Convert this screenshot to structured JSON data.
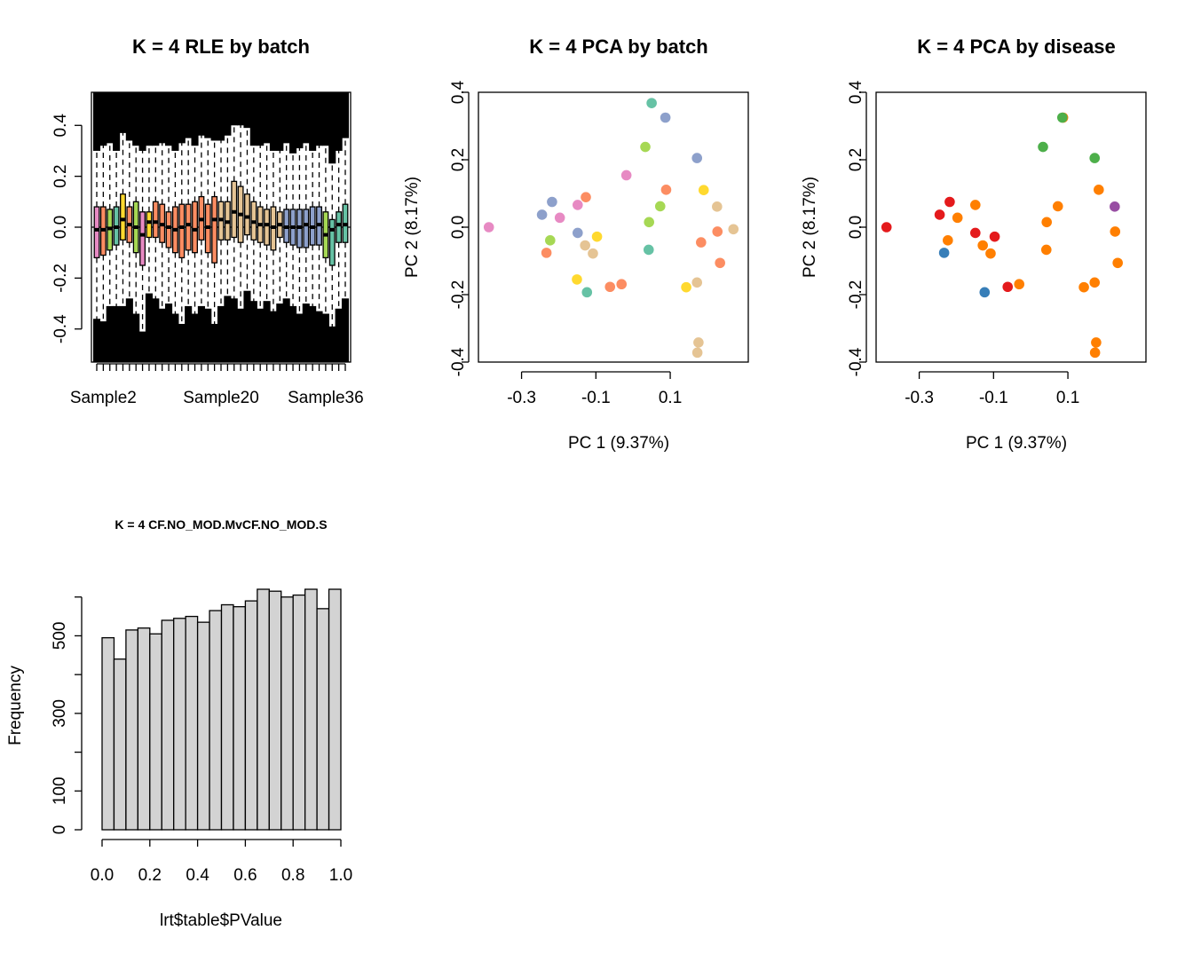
{
  "figure": {
    "layout": "2x3 grid of base R plots"
  },
  "chart_data": [
    {
      "type": "boxplot",
      "id": "rle",
      "title": "K = 4 RLE by batch",
      "xlabel": "",
      "ylabel": "",
      "ylim": [
        -0.53,
        0.53
      ],
      "yticks": [
        -0.4,
        -0.2,
        0.0,
        0.2,
        0.4
      ],
      "ytick_labels": [
        "-0.4",
        "-0.2",
        "0.0",
        "0.2",
        "0.4"
      ],
      "xtick_labels": [
        "Sample2",
        "Sample20",
        "Sample36"
      ],
      "xtick_label_positions": [
        2,
        20,
        36
      ],
      "n_samples": 39,
      "reference_line": 0,
      "boxes": [
        {
          "q1": -0.12,
          "median": -0.01,
          "q3": 0.08,
          "color": "#E78AC3"
        },
        {
          "q1": -0.11,
          "median": -0.01,
          "q3": 0.08,
          "color": "#FC8D62"
        },
        {
          "q1": -0.09,
          "median": -0.005,
          "q3": 0.07,
          "color": "#A6D854"
        },
        {
          "q1": -0.07,
          "median": 0.0,
          "q3": 0.08,
          "color": "#66C2A5"
        },
        {
          "q1": -0.05,
          "median": 0.03,
          "q3": 0.13,
          "color": "#FFD92F"
        },
        {
          "q1": -0.06,
          "median": 0.01,
          "q3": 0.08,
          "color": "#FC8D62"
        },
        {
          "q1": -0.1,
          "median": 0.0,
          "q3": 0.1,
          "color": "#A6D854"
        },
        {
          "q1": -0.15,
          "median": -0.03,
          "q3": 0.06,
          "color": "#E78AC3"
        },
        {
          "q1": -0.04,
          "median": 0.02,
          "q3": 0.06,
          "color": "#FFD92F"
        },
        {
          "q1": -0.04,
          "median": 0.02,
          "q3": 0.1,
          "color": "#FC8D62"
        },
        {
          "q1": -0.06,
          "median": 0.01,
          "q3": 0.09,
          "color": "#FC8D62"
        },
        {
          "q1": -0.08,
          "median": 0.0,
          "q3": 0.06,
          "color": "#FC8D62"
        },
        {
          "q1": -0.1,
          "median": -0.01,
          "q3": 0.08,
          "color": "#FC8D62"
        },
        {
          "q1": -0.12,
          "median": 0.0,
          "q3": 0.09,
          "color": "#FC8D62"
        },
        {
          "q1": -0.09,
          "median": 0.01,
          "q3": 0.09,
          "color": "#FC8D62"
        },
        {
          "q1": -0.1,
          "median": -0.01,
          "q3": 0.1,
          "color": "#FC8D62"
        },
        {
          "q1": -0.05,
          "median": 0.03,
          "q3": 0.12,
          "color": "#FC8D62"
        },
        {
          "q1": -0.1,
          "median": 0.0,
          "q3": 0.09,
          "color": "#FC8D62"
        },
        {
          "q1": -0.14,
          "median": 0.03,
          "q3": 0.12,
          "color": "#FC8D62"
        },
        {
          "q1": -0.05,
          "median": 0.03,
          "q3": 0.1,
          "color": "#E5C494"
        },
        {
          "q1": -0.05,
          "median": 0.02,
          "q3": 0.1,
          "color": "#E5C494"
        },
        {
          "q1": -0.04,
          "median": 0.06,
          "q3": 0.18,
          "color": "#E5C494"
        },
        {
          "q1": -0.06,
          "median": 0.05,
          "q3": 0.16,
          "color": "#E5C494"
        },
        {
          "q1": -0.03,
          "median": 0.04,
          "q3": 0.13,
          "color": "#E5C494"
        },
        {
          "q1": -0.05,
          "median": 0.02,
          "q3": 0.1,
          "color": "#E5C494"
        },
        {
          "q1": -0.06,
          "median": 0.01,
          "q3": 0.08,
          "color": "#E5C494"
        },
        {
          "q1": -0.07,
          "median": 0.01,
          "q3": 0.07,
          "color": "#E5C494"
        },
        {
          "q1": -0.09,
          "median": 0.0,
          "q3": 0.08,
          "color": "#E5C494"
        },
        {
          "q1": -0.04,
          "median": 0.01,
          "q3": 0.06,
          "color": "#E5C494"
        },
        {
          "q1": -0.06,
          "median": 0.0,
          "q3": 0.07,
          "color": "#8DA0CB"
        },
        {
          "q1": -0.07,
          "median": 0.0,
          "q3": 0.07,
          "color": "#8DA0CB"
        },
        {
          "q1": -0.08,
          "median": 0.0,
          "q3": 0.07,
          "color": "#8DA0CB"
        },
        {
          "q1": -0.08,
          "median": 0.01,
          "q3": 0.07,
          "color": "#8DA0CB"
        },
        {
          "q1": -0.07,
          "median": 0.0,
          "q3": 0.08,
          "color": "#8DA0CB"
        },
        {
          "q1": -0.07,
          "median": 0.01,
          "q3": 0.08,
          "color": "#8DA0CB"
        },
        {
          "q1": -0.12,
          "median": -0.03,
          "q3": 0.06,
          "color": "#A6D854"
        },
        {
          "q1": -0.15,
          "median": -0.01,
          "q3": 0.03,
          "color": "#66C2A5"
        },
        {
          "q1": -0.06,
          "median": 0.01,
          "q3": 0.06,
          "color": "#66C2A5"
        },
        {
          "q1": -0.06,
          "median": 0.01,
          "q3": 0.09,
          "color": "#66C2A5"
        }
      ]
    },
    {
      "type": "scatter",
      "id": "pca-batch",
      "title": "K = 4 PCA by batch",
      "xlabel": "PC 1 (9.37%)",
      "ylabel": "PC 2 (8.17%)",
      "xlim": [
        -0.416,
        0.31
      ],
      "ylim": [
        -0.4,
        0.4
      ],
      "xticks": [
        -0.3,
        -0.1,
        0.1
      ],
      "xtick_labels": [
        "-0.3",
        "-0.1",
        "0.1"
      ],
      "yticks": [
        -0.4,
        -0.2,
        0.0,
        0.2,
        0.4
      ],
      "ytick_labels": [
        "-0.4",
        "-0.2",
        "0.0",
        "0.2",
        "0.4"
      ],
      "points": [
        {
          "x": -0.388,
          "y": 0.0,
          "color": "#E78AC3"
        },
        {
          "x": -0.245,
          "y": 0.037,
          "color": "#8DA0CB"
        },
        {
          "x": -0.218,
          "y": 0.075,
          "color": "#8DA0CB"
        },
        {
          "x": -0.197,
          "y": 0.028,
          "color": "#E78AC3"
        },
        {
          "x": -0.233,
          "y": -0.076,
          "color": "#FC8D62"
        },
        {
          "x": -0.223,
          "y": -0.039,
          "color": "#A6D854"
        },
        {
          "x": -0.149,
          "y": 0.066,
          "color": "#E78AC3"
        },
        {
          "x": -0.127,
          "y": 0.089,
          "color": "#FC8D62"
        },
        {
          "x": -0.149,
          "y": -0.017,
          "color": "#8DA0CB"
        },
        {
          "x": -0.129,
          "y": -0.054,
          "color": "#E5C494"
        },
        {
          "x": -0.108,
          "y": -0.078,
          "color": "#E5C494"
        },
        {
          "x": -0.097,
          "y": -0.028,
          "color": "#FFD92F"
        },
        {
          "x": -0.151,
          "y": -0.155,
          "color": "#FFD92F"
        },
        {
          "x": -0.124,
          "y": -0.193,
          "color": "#66C2A5"
        },
        {
          "x": -0.062,
          "y": -0.177,
          "color": "#FC8D62"
        },
        {
          "x": -0.031,
          "y": -0.169,
          "color": "#FC8D62"
        },
        {
          "x": -0.018,
          "y": 0.154,
          "color": "#E78AC3"
        },
        {
          "x": 0.033,
          "y": 0.238,
          "color": "#A6D854"
        },
        {
          "x": 0.043,
          "y": 0.015,
          "color": "#A6D854"
        },
        {
          "x": 0.042,
          "y": -0.067,
          "color": "#66C2A5"
        },
        {
          "x": 0.05,
          "y": 0.368,
          "color": "#66C2A5"
        },
        {
          "x": 0.087,
          "y": 0.325,
          "color": "#8DA0CB"
        },
        {
          "x": 0.073,
          "y": 0.062,
          "color": "#A6D854"
        },
        {
          "x": 0.089,
          "y": 0.111,
          "color": "#FC8D62"
        },
        {
          "x": 0.172,
          "y": 0.205,
          "color": "#8DA0CB"
        },
        {
          "x": 0.19,
          "y": 0.11,
          "color": "#FFD92F"
        },
        {
          "x": 0.183,
          "y": -0.045,
          "color": "#FC8D62"
        },
        {
          "x": 0.143,
          "y": -0.178,
          "color": "#FFD92F"
        },
        {
          "x": 0.172,
          "y": -0.164,
          "color": "#E5C494"
        },
        {
          "x": 0.226,
          "y": 0.061,
          "color": "#E5C494"
        },
        {
          "x": 0.227,
          "y": -0.013,
          "color": "#FC8D62"
        },
        {
          "x": 0.27,
          "y": -0.006,
          "color": "#E5C494"
        },
        {
          "x": 0.234,
          "y": -0.106,
          "color": "#FC8D62"
        },
        {
          "x": 0.176,
          "y": -0.342,
          "color": "#E5C494"
        },
        {
          "x": 0.173,
          "y": -0.372,
          "color": "#E5C494"
        }
      ]
    },
    {
      "type": "scatter",
      "id": "pca-disease",
      "title": "K = 4 PCA by disease",
      "xlabel": "PC 1 (9.37%)",
      "ylabel": "PC 2 (8.17%)",
      "xlim": [
        -0.416,
        0.31
      ],
      "ylim": [
        -0.4,
        0.4
      ],
      "xticks": [
        -0.3,
        -0.1,
        0.1
      ],
      "xtick_labels": [
        "-0.3",
        "-0.1",
        "0.1"
      ],
      "yticks": [
        -0.4,
        -0.2,
        0.0,
        0.2,
        0.4
      ],
      "ytick_labels": [
        "-0.4",
        "-0.2",
        "0.0",
        "0.2",
        "0.4"
      ],
      "points": [
        {
          "x": -0.388,
          "y": 0.0,
          "color": "#E41A1C"
        },
        {
          "x": -0.245,
          "y": 0.037,
          "color": "#E41A1C"
        },
        {
          "x": -0.218,
          "y": 0.075,
          "color": "#E41A1C"
        },
        {
          "x": -0.197,
          "y": 0.028,
          "color": "#FF7F00"
        },
        {
          "x": -0.233,
          "y": -0.076,
          "color": "#377EB8"
        },
        {
          "x": -0.223,
          "y": -0.039,
          "color": "#FF7F00"
        },
        {
          "x": -0.149,
          "y": 0.066,
          "color": "#FF7F00"
        },
        {
          "x": -0.149,
          "y": -0.017,
          "color": "#E41A1C"
        },
        {
          "x": -0.129,
          "y": -0.054,
          "color": "#FF7F00"
        },
        {
          "x": -0.108,
          "y": -0.078,
          "color": "#FF7F00"
        },
        {
          "x": -0.097,
          "y": -0.028,
          "color": "#E41A1C"
        },
        {
          "x": -0.124,
          "y": -0.193,
          "color": "#377EB8"
        },
        {
          "x": -0.062,
          "y": -0.177,
          "color": "#E41A1C"
        },
        {
          "x": -0.031,
          "y": -0.169,
          "color": "#FF7F00"
        },
        {
          "x": 0.033,
          "y": 0.238,
          "color": "#4DAF4A"
        },
        {
          "x": 0.043,
          "y": 0.015,
          "color": "#FF7F00"
        },
        {
          "x": 0.042,
          "y": -0.067,
          "color": "#FF7F00"
        },
        {
          "x": 0.073,
          "y": 0.062,
          "color": "#FF7F00"
        },
        {
          "x": 0.087,
          "y": 0.325,
          "color": "#FF7F00"
        },
        {
          "x": 0.085,
          "y": 0.325,
          "color": "#4DAF4A"
        },
        {
          "x": 0.172,
          "y": 0.205,
          "color": "#4DAF4A"
        },
        {
          "x": 0.183,
          "y": 0.111,
          "color": "#FF7F00"
        },
        {
          "x": 0.143,
          "y": -0.178,
          "color": "#FF7F00"
        },
        {
          "x": 0.172,
          "y": -0.164,
          "color": "#FF7F00"
        },
        {
          "x": 0.226,
          "y": 0.061,
          "color": "#984EA3"
        },
        {
          "x": 0.227,
          "y": -0.013,
          "color": "#FF7F00"
        },
        {
          "x": 0.234,
          "y": -0.106,
          "color": "#FF7F00"
        },
        {
          "x": 0.176,
          "y": -0.342,
          "color": "#FF7F00"
        },
        {
          "x": 0.173,
          "y": -0.372,
          "color": "#FF7F00"
        }
      ]
    },
    {
      "type": "histogram",
      "id": "pvalue-hist",
      "title": "K = 4 CF.NO_MOD.MvCF.NO_MOD.S",
      "xlabel": "lrt$table$PValue",
      "ylabel": "Frequency",
      "xlim": [
        0,
        1
      ],
      "ylim": [
        0,
        620
      ],
      "xticks": [
        0.0,
        0.2,
        0.4,
        0.6,
        0.8,
        1.0
      ],
      "xtick_labels": [
        "0.0",
        "0.2",
        "0.4",
        "0.6",
        "0.8",
        "1.0"
      ],
      "yticks": [
        0,
        100,
        200,
        300,
        400,
        500,
        600
      ],
      "ytick_labels": [
        "0",
        "100",
        "",
        "300",
        "",
        "500",
        ""
      ],
      "bin_width": 0.05,
      "counts": [
        495,
        440,
        515,
        520,
        505,
        540,
        545,
        550,
        535,
        565,
        580,
        575,
        590,
        620,
        615,
        600,
        605,
        620,
        570,
        620
      ],
      "bar_fill": "#D3D3D3"
    }
  ]
}
